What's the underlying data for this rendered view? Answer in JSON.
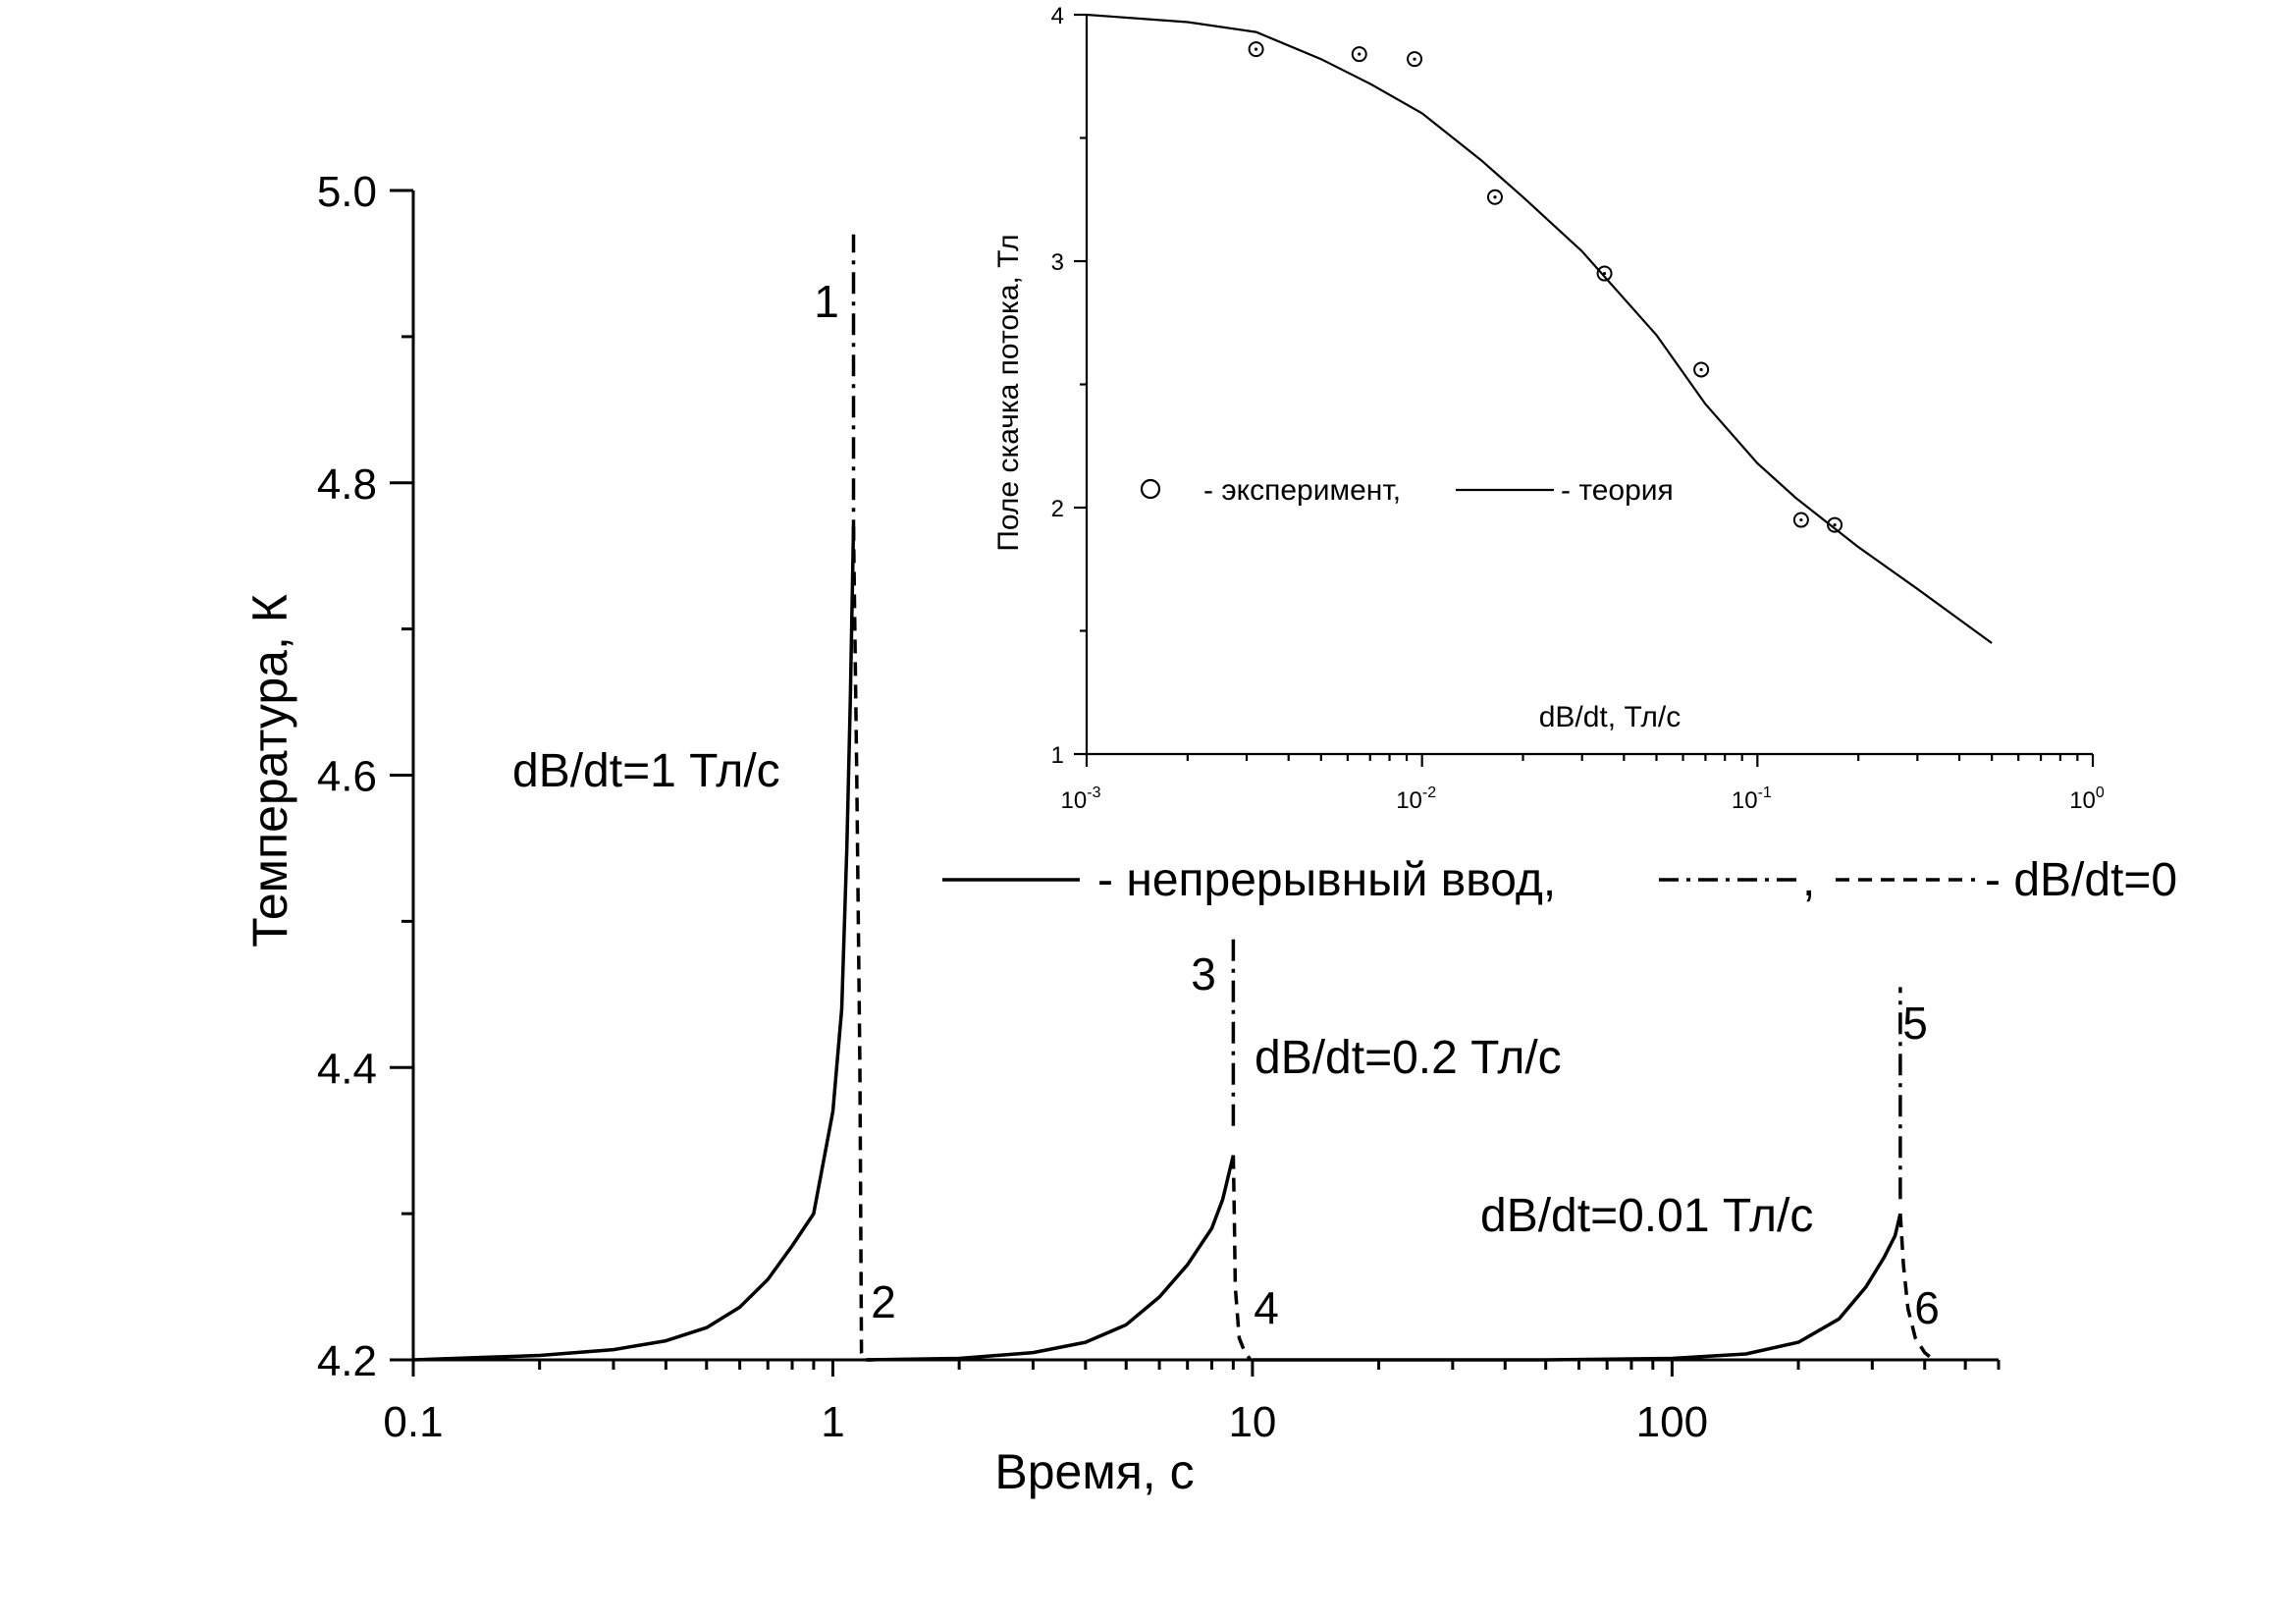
{
  "chart_data": [
    {
      "type": "line",
      "xlabel": "Время, с",
      "ylabel": "Температура, К",
      "x_scale": "log",
      "xlim": [
        0.1,
        600
      ],
      "ylim": [
        4.2,
        5.0
      ],
      "x_tick_labels": [
        "0.1",
        "1",
        "10",
        "100"
      ],
      "y_tick_labels": [
        "4.2",
        "4.4",
        "4.6",
        "4.8",
        "5.0"
      ],
      "legend": {
        "solid_text": "- непрерывный ввод,",
        "dashdot_text": ",",
        "dashed_text": "- dB/dt=0"
      },
      "series": [
        {
          "label": "1",
          "style": "dash-dot",
          "x": [
            1.12,
            1.12,
            1.12,
            1.12
          ],
          "y": [
            4.76,
            4.8,
            4.9,
            4.97
          ]
        },
        {
          "label": "2",
          "style": "dashed",
          "x": [
            1.12,
            1.14,
            1.16,
            1.17,
            1.19,
            1.25
          ],
          "y": [
            4.77,
            4.6,
            4.4,
            4.205,
            4.2,
            4.2
          ]
        },
        {
          "label": "",
          "style": "solid",
          "x": [
            0.1,
            0.2,
            0.3,
            0.4,
            0.5,
            0.6,
            0.7,
            0.8,
            0.9,
            1.0,
            1.05,
            1.08,
            1.1,
            1.12
          ],
          "y": [
            4.2,
            4.203,
            4.207,
            4.213,
            4.222,
            4.236,
            4.255,
            4.278,
            4.3,
            4.37,
            4.44,
            4.55,
            4.65,
            4.77
          ]
        },
        {
          "label": "",
          "style": "solid",
          "x": [
            1.2,
            2,
            3,
            4,
            5,
            6,
            7,
            8,
            8.5,
            9.0
          ],
          "y": [
            4.2,
            4.201,
            4.205,
            4.212,
            4.224,
            4.243,
            4.265,
            4.29,
            4.31,
            4.34
          ]
        },
        {
          "label": "3",
          "style": "dash-dot",
          "x": [
            9.0,
            9.0,
            9.0
          ],
          "y": [
            4.36,
            4.42,
            4.49
          ]
        },
        {
          "label": "4",
          "style": "dashed",
          "x": [
            9.0,
            9.05,
            9.1,
            9.3,
            9.6,
            9.9
          ],
          "y": [
            4.34,
            4.3,
            4.25,
            4.215,
            4.205,
            4.2
          ]
        },
        {
          "label": "",
          "style": "solid",
          "x": [
            10,
            50,
            100,
            150,
            200,
            250,
            290,
            320,
            340,
            350
          ],
          "y": [
            4.2,
            4.2,
            4.201,
            4.204,
            4.212,
            4.228,
            4.25,
            4.27,
            4.285,
            4.3
          ]
        },
        {
          "label": "5",
          "style": "dash-dot",
          "x": [
            350,
            350,
            350
          ],
          "y": [
            4.31,
            4.38,
            4.455
          ]
        },
        {
          "label": "6",
          "style": "dashed",
          "x": [
            350,
            356,
            365,
            380,
            400,
            420
          ],
          "y": [
            4.3,
            4.265,
            4.235,
            4.215,
            4.205,
            4.2
          ]
        }
      ],
      "annotations": [
        {
          "text": "dB/dt=1 Тл/с"
        },
        {
          "text": "dB/dt=0.2 Тл/с"
        },
        {
          "text": "dB/dt=0.01 Тл/с"
        }
      ]
    },
    {
      "type": "scatter",
      "xlabel": "dB/dt, Тл/с",
      "ylabel": "Поле скачка потока, Тл",
      "x_scale": "log",
      "xlim": [
        0.001,
        1
      ],
      "ylim": [
        1,
        4
      ],
      "x_tick_labels": [
        {
          "base": "10",
          "exp": "-3"
        },
        {
          "base": "10",
          "exp": "-2"
        },
        {
          "base": "10",
          "exp": "-1"
        },
        {
          "base": "10",
          "exp": "0"
        }
      ],
      "y_tick_labels": [
        "1",
        "2",
        "3",
        "4"
      ],
      "legend": {
        "marker_text": "- эксперимент,",
        "line_text": "- теория"
      },
      "series": [
        {
          "label": "эксперимент",
          "style": "circle",
          "x": [
            0.0032,
            0.0065,
            0.0095,
            0.0165,
            0.035,
            0.068,
            0.135,
            0.17
          ],
          "y": [
            3.86,
            3.84,
            3.82,
            3.26,
            2.95,
            2.56,
            1.95,
            1.93
          ]
        },
        {
          "label": "теория",
          "style": "solid",
          "x": [
            0.001,
            0.002,
            0.0032,
            0.005,
            0.007,
            0.01,
            0.015,
            0.02,
            0.03,
            0.05,
            0.07,
            0.1,
            0.13,
            0.2,
            0.3,
            0.5
          ],
          "y": [
            4.0,
            3.97,
            3.93,
            3.82,
            3.72,
            3.6,
            3.41,
            3.26,
            3.04,
            2.7,
            2.42,
            2.18,
            2.04,
            1.84,
            1.67,
            1.45
          ]
        }
      ]
    }
  ]
}
